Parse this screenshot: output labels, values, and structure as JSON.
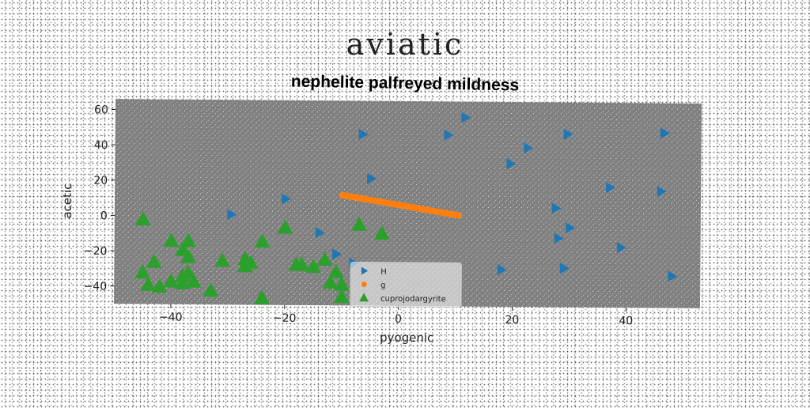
{
  "suptitle": "aviatic",
  "colors": {
    "axes_bg": "#808080",
    "blue": "#1f77b4",
    "orange": "#ff7f0e",
    "green": "#2ca02c"
  },
  "chart_data": {
    "type": "scatter",
    "title": "nephelite palfreyed mildness",
    "xlabel": "pyogenic",
    "ylabel": "acetic",
    "xlim": [
      -50,
      53
    ],
    "ylim": [
      -50,
      66
    ],
    "xticks": [
      -40,
      -20,
      0,
      20,
      40
    ],
    "yticks": [
      -40,
      -20,
      0,
      20,
      40,
      60
    ],
    "xtick_labels": [
      "−40",
      "−20",
      "0",
      "20",
      "40"
    ],
    "ytick_labels": [
      "−40",
      "−20",
      "0",
      "20",
      "40",
      "60"
    ],
    "grid": false,
    "legend_position": "lower-center",
    "series": [
      {
        "name": "H",
        "marker": "triangle-right",
        "color": "#1f77b4",
        "points": [
          [
            -6.5,
            47
          ],
          [
            11.5,
            57
          ],
          [
            8.5,
            47
          ],
          [
            29.5,
            48
          ],
          [
            46.5,
            49
          ],
          [
            22.5,
            40
          ],
          [
            19.5,
            31
          ],
          [
            -5,
            22
          ],
          [
            37,
            18
          ],
          [
            46,
            16
          ],
          [
            -20,
            10
          ],
          [
            -29.5,
            1
          ],
          [
            27.5,
            6
          ],
          [
            30,
            -5
          ],
          [
            28,
            -11
          ],
          [
            39,
            -16
          ],
          [
            -14,
            -9
          ],
          [
            -11,
            -21
          ],
          [
            -8,
            -26
          ],
          [
            18,
            -29
          ],
          [
            29,
            -28
          ],
          [
            48,
            -32
          ]
        ]
      },
      {
        "name": "g",
        "marker": "circle",
        "color": "#ff7f0e",
        "line_points": [
          [
            -10,
            12.5
          ],
          [
            10.5,
            1.5
          ]
        ]
      },
      {
        "name": "cuprojodargyrite",
        "marker": "triangle-up",
        "color": "#2ca02c",
        "points": [
          [
            -45,
            -2
          ],
          [
            -40,
            -14
          ],
          [
            -37,
            -14
          ],
          [
            -38,
            -19
          ],
          [
            -37,
            -23
          ],
          [
            -45,
            -32
          ],
          [
            -43,
            -26
          ],
          [
            -40,
            -37
          ],
          [
            -38,
            -34
          ],
          [
            -36,
            -37
          ],
          [
            -37,
            -32
          ],
          [
            -38,
            -38
          ],
          [
            -33,
            -42
          ],
          [
            -31,
            -25
          ],
          [
            -27,
            -24
          ],
          [
            -26,
            -26
          ],
          [
            -27,
            -28
          ],
          [
            -24,
            -14
          ],
          [
            -20,
            -6
          ],
          [
            -18,
            -27
          ],
          [
            -17,
            -27
          ],
          [
            -15,
            -28
          ],
          [
            -13,
            -24
          ],
          [
            -12,
            -37
          ],
          [
            -10,
            -38
          ],
          [
            -10,
            -45
          ],
          [
            -7,
            -4
          ],
          [
            -3,
            -9
          ],
          [
            -44,
            -39
          ],
          [
            -42,
            -40
          ],
          [
            -24,
            -46
          ],
          [
            -11,
            -31
          ]
        ]
      }
    ]
  }
}
